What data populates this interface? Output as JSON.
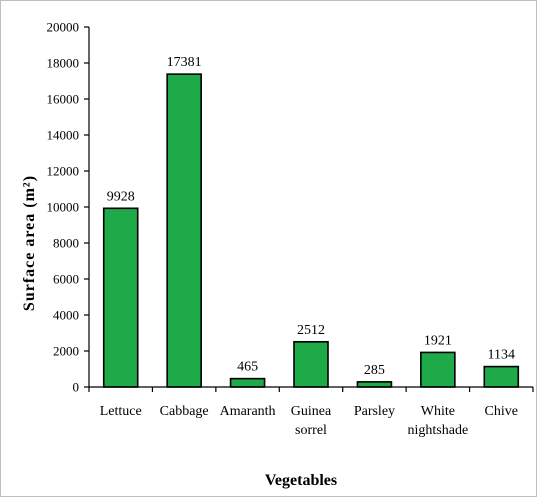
{
  "chart_data": {
    "type": "bar",
    "categories": [
      [
        "Lettuce"
      ],
      [
        "Cabbage"
      ],
      [
        "Amaranth"
      ],
      [
        "Guinea",
        "sorrel"
      ],
      [
        "Parsley"
      ],
      [
        "White",
        "nightshade"
      ],
      [
        "Chive"
      ]
    ],
    "values": [
      9928,
      17381,
      465,
      2512,
      285,
      1921,
      1134
    ],
    "data_labels": [
      "9928",
      "17381",
      "465",
      "2512",
      "285",
      "1921",
      "1134"
    ],
    "xlabel": "Vegetables",
    "ylabel": "Surface area (m²)",
    "ylim": [
      0,
      20000
    ],
    "yticks": [
      0,
      2000,
      4000,
      6000,
      8000,
      10000,
      12000,
      14000,
      16000,
      18000,
      20000
    ],
    "bar_color": "#1faa4a",
    "bar_edge_color": "#000000",
    "grid": false,
    "legend": "none"
  }
}
